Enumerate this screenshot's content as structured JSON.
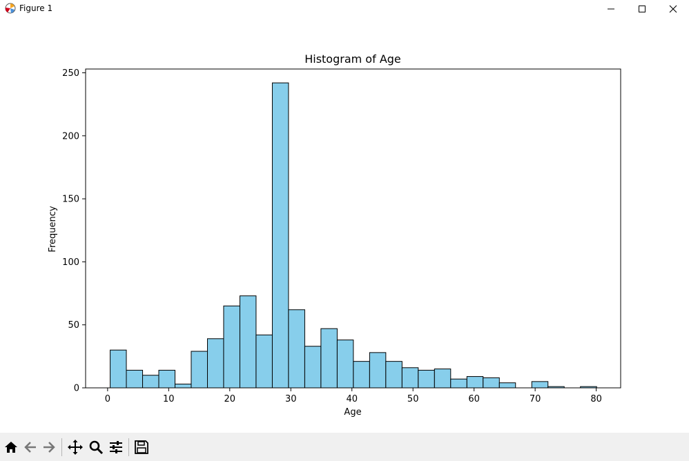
{
  "window": {
    "title": "Figure 1",
    "minimize_icon": "minimize-icon",
    "maximize_icon": "maximize-icon",
    "close_icon": "close-icon"
  },
  "toolbar": {
    "buttons": [
      {
        "name": "home-button",
        "icon": "home-icon"
      },
      {
        "name": "back-button",
        "icon": "back-arrow-icon"
      },
      {
        "name": "forward-button",
        "icon": "forward-arrow-icon"
      },
      {
        "name": "pan-button",
        "icon": "move-icon"
      },
      {
        "name": "zoom-button",
        "icon": "magnifier-icon"
      },
      {
        "name": "configure-subplots-button",
        "icon": "sliders-icon"
      },
      {
        "name": "save-button",
        "icon": "floppy-disk-icon"
      }
    ]
  },
  "colors": {
    "bar_fill": "#87ceeb",
    "bar_edge": "#000000",
    "toolbar_bg": "#f0f0f0"
  },
  "chart_data": {
    "type": "bar",
    "title": "Histogram of Age",
    "xlabel": "Age",
    "ylabel": "Frequency",
    "xlim": [
      -3.6,
      84.0
    ],
    "ylim": [
      0,
      253
    ],
    "xticks": [
      0,
      10,
      20,
      30,
      40,
      50,
      60,
      70,
      80
    ],
    "yticks": [
      0,
      50,
      100,
      150,
      200,
      250
    ],
    "grid": false,
    "bin_edges": [
      0.42,
      3.07,
      5.73,
      8.38,
      11.04,
      13.69,
      16.35,
      19.0,
      21.66,
      24.31,
      26.97,
      29.62,
      32.28,
      34.93,
      37.59,
      40.24,
      42.9,
      45.55,
      48.21,
      50.86,
      53.52,
      56.17,
      58.83,
      61.48,
      64.14,
      66.79,
      69.45,
      72.1,
      74.76,
      77.41,
      80.07
    ],
    "values": [
      30,
      14,
      10,
      14,
      3,
      29,
      39,
      65,
      73,
      42,
      242,
      62,
      33,
      47,
      38,
      21,
      28,
      21,
      16,
      14,
      15,
      7,
      9,
      8,
      4,
      0,
      5,
      1,
      0,
      1
    ]
  }
}
